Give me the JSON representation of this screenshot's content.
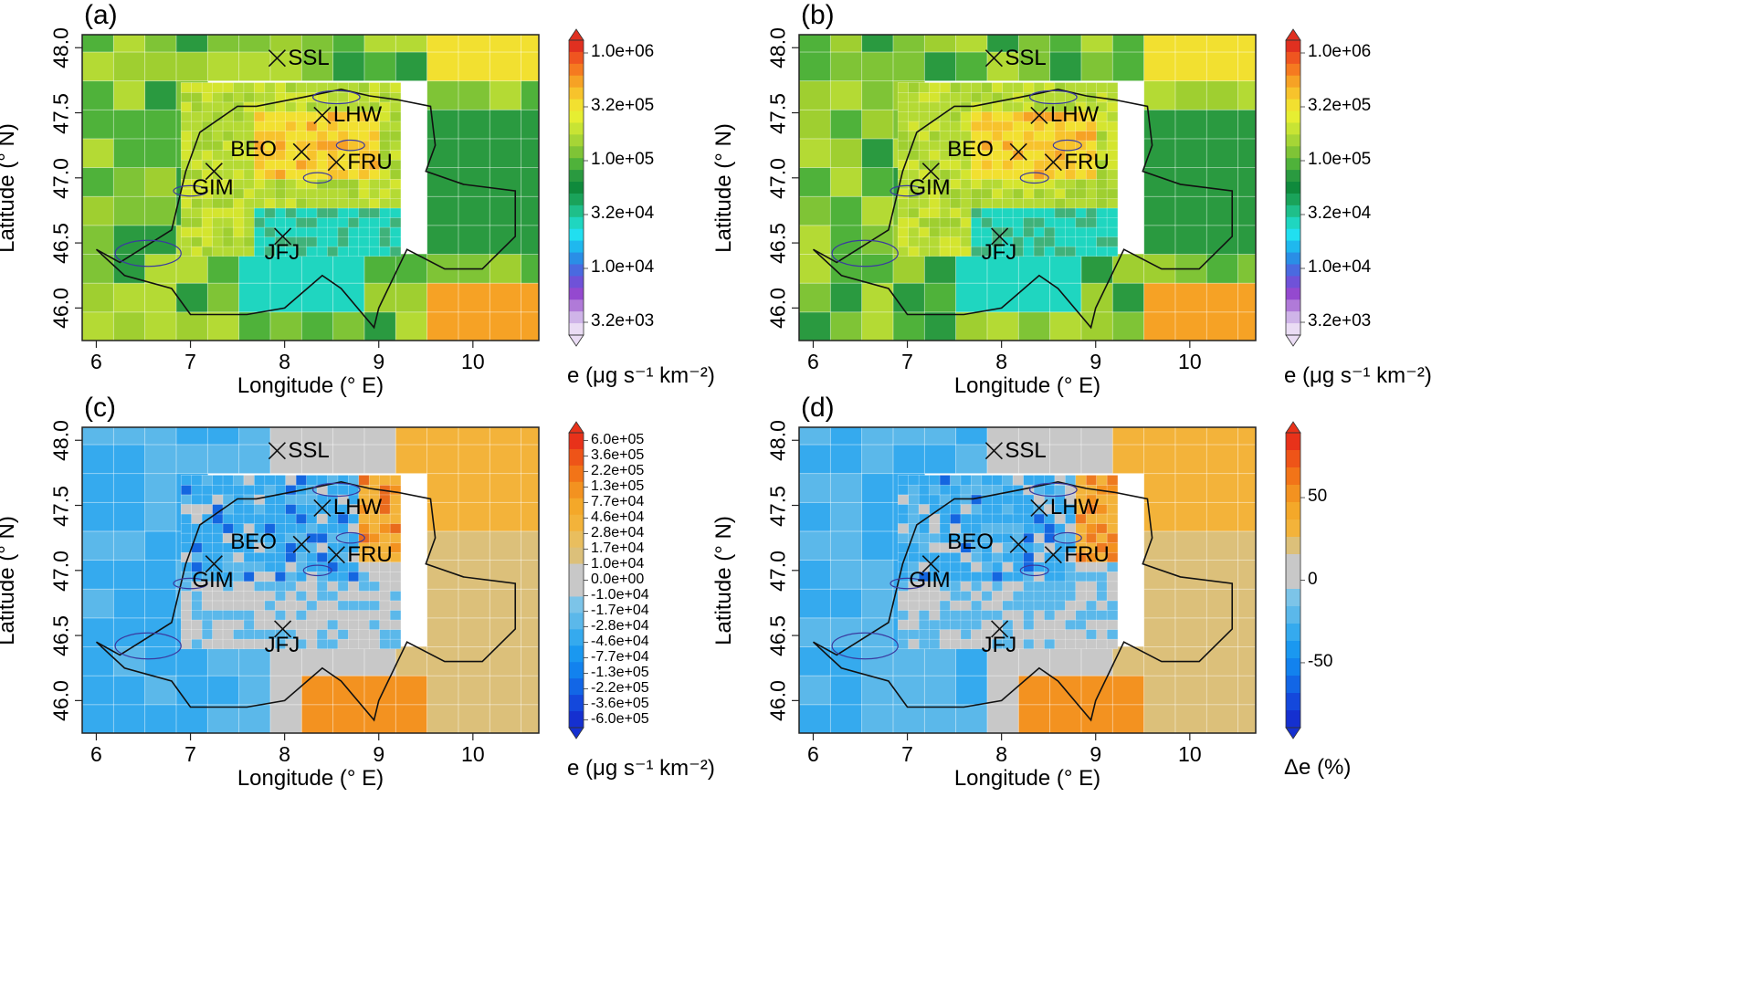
{
  "map": {
    "region": "Switzerland and surroundings",
    "lon_range": [
      5.85,
      10.7
    ],
    "lat_range": [
      45.75,
      48.1
    ],
    "x_label": "Longitude (° E)",
    "y_label": "Latitude (° N)",
    "x_ticks": [
      "6",
      "7",
      "8",
      "9",
      "10"
    ],
    "y_ticks": [
      "46.0",
      "46.5",
      "47.0",
      "47.5",
      "48.0"
    ],
    "sites": [
      {
        "label": "SSL",
        "lon": 7.92,
        "lat": 47.92
      },
      {
        "label": "LHW",
        "lon": 8.4,
        "lat": 47.48
      },
      {
        "label": "BEO",
        "lon": 8.18,
        "lat": 47.2
      },
      {
        "label": "FRU",
        "lon": 8.55,
        "lat": 47.12
      },
      {
        "label": "GIM",
        "lon": 7.25,
        "lat": 47.05
      },
      {
        "label": "JFJ",
        "lon": 7.98,
        "lat": 46.55
      }
    ]
  },
  "panels": [
    {
      "id": "a",
      "label": "(a)",
      "colorbar_title": "e (μg s⁻¹ km⁻²)",
      "colorbar_ticks": [
        "1.0e+06",
        "3.2e+05",
        "1.0e+05",
        "3.2e+04",
        "1.0e+04",
        "3.2e+03"
      ],
      "colorbar_colors": [
        "#e03020",
        "#ef5520",
        "#f57a20",
        "#f6a225",
        "#f7c32c",
        "#f2e030",
        "#e6ee32",
        "#c8e434",
        "#a6d536",
        "#7fc436",
        "#4fb23a",
        "#2a9a40",
        "#0f8a3c",
        "#1aa35a",
        "#1fbf8a",
        "#1fd6c0",
        "#21dff0",
        "#1fb8ee",
        "#2a8ee6",
        "#4a6ae0",
        "#6f52d8",
        "#9449cf",
        "#b07ad8",
        "#cfb4e8",
        "#eadcf4"
      ],
      "map_colors": [
        "#9fcf30",
        "#7fc436",
        "#4fb23a",
        "#2a9a40",
        "#b4da34",
        "#d4e52f",
        "#f2e030",
        "#f7c32c",
        "#1fd6c0",
        "#3fb27a",
        "#f6a225"
      ]
    },
    {
      "id": "b",
      "label": "(b)",
      "colorbar_title": "e (μg s⁻¹ km⁻²)",
      "colorbar_ticks": [
        "1.0e+06",
        "3.2e+05",
        "1.0e+05",
        "3.2e+04",
        "1.0e+04",
        "3.2e+03"
      ],
      "colorbar_colors": [
        "#e03020",
        "#ef5520",
        "#f57a20",
        "#f6a225",
        "#f7c32c",
        "#f2e030",
        "#e6ee32",
        "#c8e434",
        "#a6d536",
        "#7fc436",
        "#4fb23a",
        "#2a9a40",
        "#0f8a3c",
        "#1aa35a",
        "#1fbf8a",
        "#1fd6c0",
        "#21dff0",
        "#1fb8ee",
        "#2a8ee6",
        "#4a6ae0",
        "#6f52d8",
        "#9449cf",
        "#b07ad8",
        "#cfb4e8",
        "#eadcf4"
      ],
      "map_colors": [
        "#9fcf30",
        "#7fc436",
        "#4fb23a",
        "#2a9a40",
        "#b4da34",
        "#d4e52f",
        "#f2e030",
        "#f7c32c",
        "#1fd6c0",
        "#3fb27a",
        "#f6a225"
      ]
    },
    {
      "id": "c",
      "label": "(c)",
      "colorbar_title": "e (μg s⁻¹ km⁻²)",
      "colorbar_ticks": [
        "6.0e+05",
        "3.6e+05",
        "2.2e+05",
        "1.3e+05",
        "7.7e+04",
        "4.6e+04",
        "2.8e+04",
        "1.7e+04",
        "1.0e+04",
        "0.0e+00",
        "-1.0e+04",
        "-1.7e+04",
        "-2.8e+04",
        "-4.6e+04",
        "-7.7e+04",
        "-1.3e+05",
        "-2.2e+05",
        "-3.6e+05",
        "-6.0e+05"
      ],
      "colorbar_colors": [
        "#e8321a",
        "#ee5418",
        "#f27418",
        "#f39220",
        "#f4a829",
        "#f3b33a",
        "#e9be5e",
        "#dcc07a",
        "#c8c8c8",
        "#c8c8c8",
        "#7cc4e8",
        "#5bb8ea",
        "#35aaee",
        "#1a98f0",
        "#1282ee",
        "#1266e6",
        "#1448dc",
        "#1530d0"
      ],
      "map_colors": [
        "#5bb8ea",
        "#35aaee",
        "#1a98f0",
        "#c8c8c8",
        "#dcc07a",
        "#f3b33a",
        "#f39220",
        "#1466e0",
        "#e96a1c"
      ]
    },
    {
      "id": "d",
      "label": "(d)",
      "colorbar_title": "Δe (%)",
      "colorbar_ticks": [
        "50",
        "0",
        "-50"
      ],
      "colorbar_colors": [
        "#e8321a",
        "#ee5418",
        "#f27418",
        "#f39220",
        "#f4a829",
        "#f3b33a",
        "#dcc07a",
        "#c8c8c8",
        "#c8c8c8",
        "#7cc4e8",
        "#5bb8ea",
        "#35aaee",
        "#1a98f0",
        "#1282ee",
        "#1266e6",
        "#1448dc",
        "#1530d0"
      ],
      "map_colors": [
        "#5bb8ea",
        "#35aaee",
        "#1a98f0",
        "#c8c8c8",
        "#dcc07a",
        "#f3b33a",
        "#f39220",
        "#1466e0",
        "#ee7a20"
      ]
    }
  ]
}
